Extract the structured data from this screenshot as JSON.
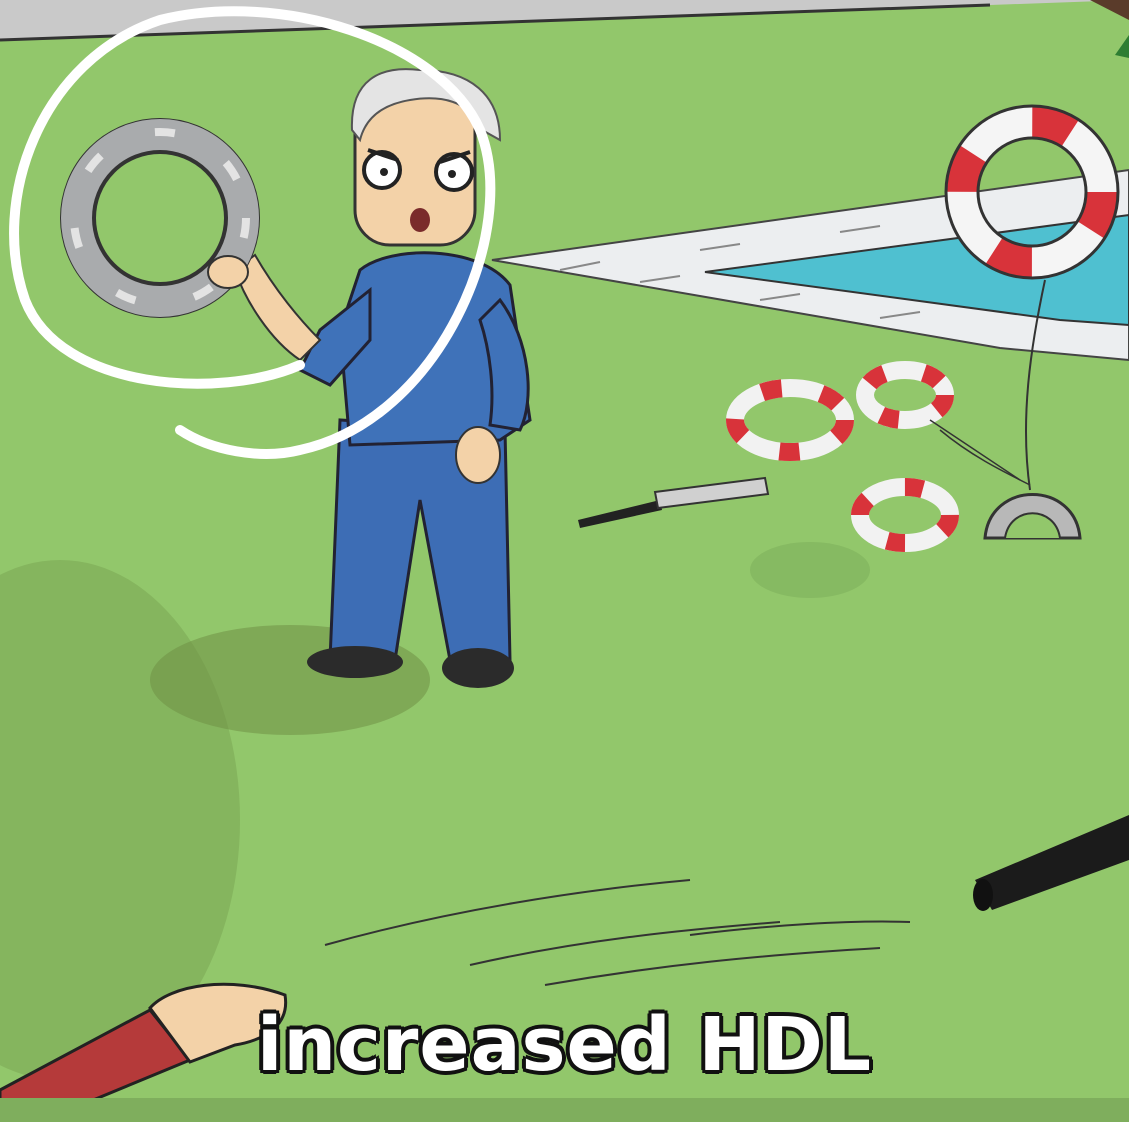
{
  "video_frame": {
    "caption": "increased HDL",
    "colors": {
      "grass": "#8fc56a",
      "pool_water": "#4fc0d0",
      "pool_deck": "#e8ecee",
      "shirt": "#3d6db5",
      "lifebuoy_red": "#d8333a",
      "lifebuoy_gray": "#a9abad",
      "annotation": "#ffffff"
    },
    "icons": [
      "old-man-figure",
      "metal-ring",
      "lifebuoy",
      "shredded-lifebuoy",
      "knife",
      "bear-trap",
      "annotation-circle",
      "pointing-arm",
      "black-pole"
    ]
  }
}
